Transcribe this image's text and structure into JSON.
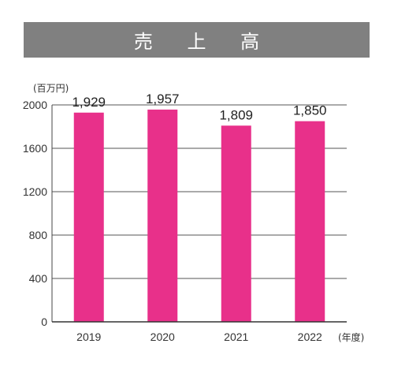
{
  "chart_data": {
    "type": "bar",
    "title": "売 上 高",
    "ylabel": "(百万円)",
    "xlabel": "(年度)",
    "categories": [
      "2019",
      "2020",
      "2021",
      "2022"
    ],
    "values": [
      1929,
      1957,
      1809,
      1850
    ],
    "data_labels": [
      "1,929",
      "1,957",
      "1,809",
      "1,850"
    ],
    "yticks": [
      "0",
      "400",
      "800",
      "1200",
      "1600",
      "2000"
    ],
    "ylim": [
      0,
      2000
    ],
    "grid": true,
    "bar_color": "#e8308a",
    "title_bg_color": "#808080"
  }
}
